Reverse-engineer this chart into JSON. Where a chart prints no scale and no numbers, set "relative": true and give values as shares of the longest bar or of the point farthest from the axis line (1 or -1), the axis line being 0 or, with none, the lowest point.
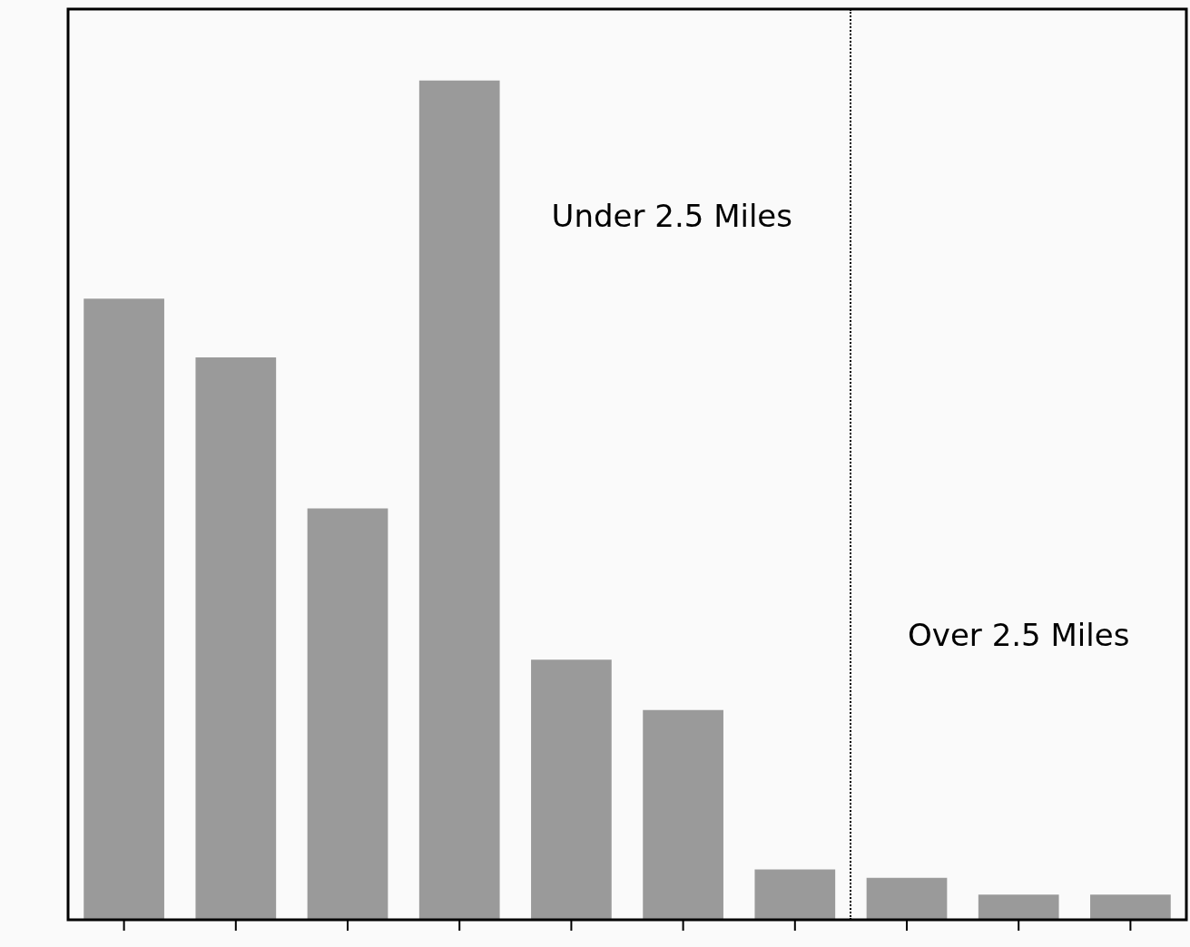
{
  "chart_data": {
    "type": "bar",
    "relative": true,
    "categories": [
      null,
      null,
      null,
      null,
      null,
      null,
      null,
      null,
      null,
      null
    ],
    "values": [
      0.74,
      0.67,
      0.49,
      1,
      0.31,
      0.25,
      0.06,
      0.05,
      0.03,
      0.03
    ],
    "color": "#9a9a9a",
    "annotations": [
      "Under 2.5 Miles",
      "Over 2.5 Miles"
    ],
    "grid": false,
    "legend": false
  }
}
